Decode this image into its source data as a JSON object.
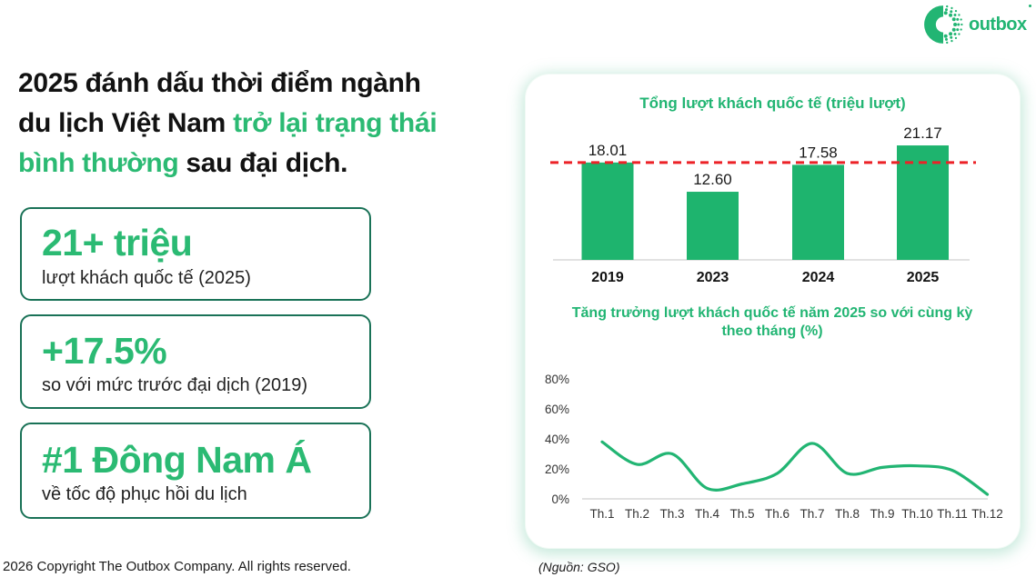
{
  "logo": {
    "text": "outbox"
  },
  "headline": {
    "line1": "2025 đánh dấu thời điểm ngành",
    "line2_dark": "du lịch Việt Nam ",
    "line2_green": "trở lại trạng thái",
    "line3_green": "bình thường ",
    "line3_dark": "sau đại dịch."
  },
  "stats": [
    {
      "value": "21+ triệu",
      "label": "lượt khách quốc tế (2025)"
    },
    {
      "value": "+17.5%",
      "label": "so với mức trước đại dịch (2019)"
    },
    {
      "value": "#1 Đông Nam Á",
      "label": "về tốc độ phục hồi du lịch"
    }
  ],
  "footer": {
    "copyright": "2026 Copyright The Outbox Company. All rights reserved.",
    "source": "(Nguồn: GSO)"
  },
  "colors": {
    "accent_green": "#22B573",
    "bar_green": "#1EB46E",
    "dark_green_border": "#1A7257",
    "reference_red": "#EC2227",
    "axis_gray": "#D9D9D9",
    "text_dark": "#1A1A1A"
  },
  "chart_data": [
    {
      "type": "bar",
      "title": "Tổng lượt khách quốc tế (triệu lượt)",
      "categories": [
        "2019",
        "2023",
        "2024",
        "2025"
      ],
      "values": [
        18.01,
        12.6,
        17.58,
        21.17
      ],
      "value_labels": [
        "18.01",
        "12.60",
        "17.58",
        "21.17"
      ],
      "reference_line": {
        "value": 18.01,
        "style": "dashed",
        "color": "#EC2227"
      },
      "bar_color": "#1EB46E",
      "xlabel": "",
      "ylabel": "",
      "grid": false,
      "legend": false
    },
    {
      "type": "line",
      "title": "Tăng trưởng lượt khách quốc tế năm 2025 so với cùng kỳ theo tháng (%)",
      "categories": [
        "Th.1",
        "Th.2",
        "Th.3",
        "Th.4",
        "Th.5",
        "Th.6",
        "Th.7",
        "Th.8",
        "Th.9",
        "Th.10",
        "Th.11",
        "Th.12"
      ],
      "values": [
        38,
        23,
        30,
        7,
        10,
        17,
        37,
        17,
        21,
        22,
        19,
        3
      ],
      "ylim": [
        0,
        80
      ],
      "yticks": [
        0,
        20,
        40,
        60,
        80
      ],
      "ytick_labels": [
        "0%",
        "20%",
        "40%",
        "60%",
        "80%"
      ],
      "line_color": "#22B573",
      "smooth": true,
      "xlabel": "",
      "ylabel": "",
      "grid": false,
      "legend": false
    }
  ]
}
